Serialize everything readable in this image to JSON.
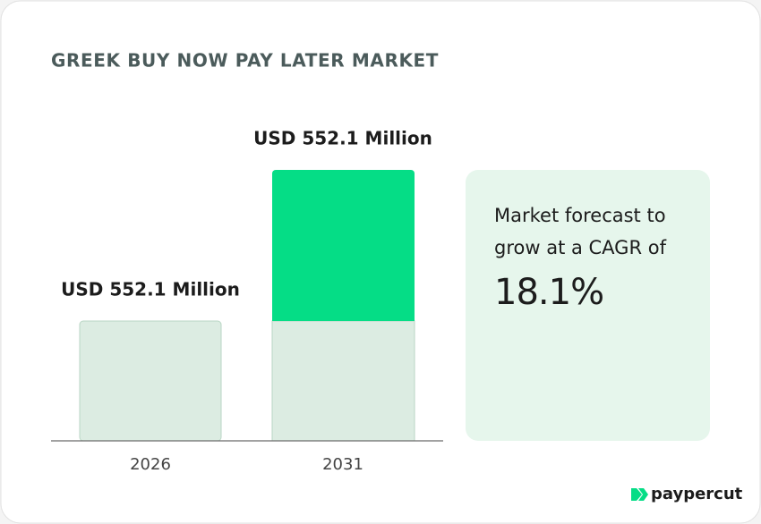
{
  "title": "GREEK BUY NOW PAY LATER MARKET",
  "bars": [
    {
      "year": "2026",
      "label": "USD 552.1 Million"
    },
    {
      "year": "2031",
      "label": "USD 552.1 Million"
    }
  ],
  "callout": {
    "lines": [
      "Market forecast to",
      "grow at a CAGR of"
    ],
    "figure": "18.1%"
  },
  "brand": "paypercut"
}
